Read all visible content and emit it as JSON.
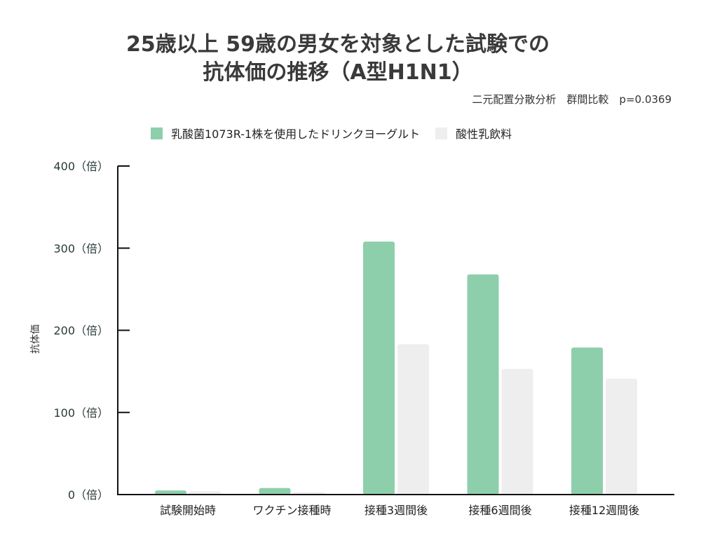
{
  "chart_data": {
    "type": "bar",
    "title": "25歳以上 59歳の男女を対象とした試験での",
    "subtitle": "抗体価の推移（A型H1N1）",
    "annotation": "二元配置分散分析　群間比較　p=0.0369",
    "xlabel": "",
    "ylabel": "抗体価",
    "ylim": [
      0,
      400
    ],
    "yticks": [
      0,
      100,
      200,
      300,
      400
    ],
    "ytick_labels": [
      "0（倍）",
      "100（倍）",
      "200（倍）",
      "300（倍）",
      "400（倍）"
    ],
    "categories": [
      "試験開始時",
      "ワクチン接種時",
      "接種3週間後",
      "接種6週間後",
      "接種12週間後"
    ],
    "series": [
      {
        "name": "乳酸菌1073R-1株を使用したドリンクヨーグルト",
        "color": "#8dcfab",
        "values": [
          5,
          8,
          308,
          268,
          179
        ]
      },
      {
        "name": "酸性乳飲料",
        "color": "#eeeeee",
        "values": [
          4,
          3,
          183,
          153,
          141
        ]
      }
    ],
    "grid": false,
    "legend": "top"
  }
}
